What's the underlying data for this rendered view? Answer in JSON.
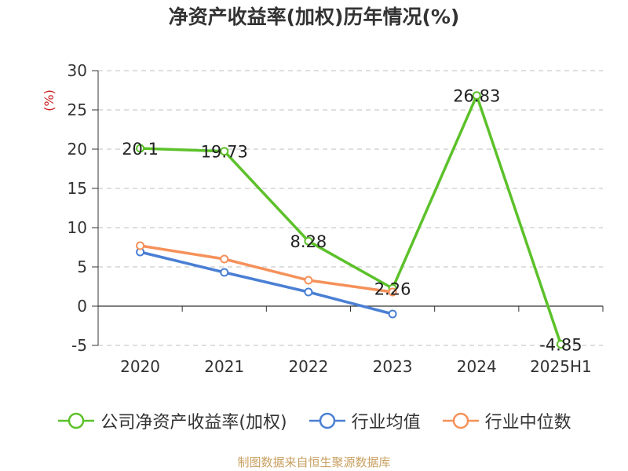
{
  "chart_data": {
    "type": "line",
    "title": "净资产收益率(加权)历年情况(%)",
    "ylabel": "(%)",
    "categories": [
      "2020",
      "2021",
      "2022",
      "2023",
      "2024",
      "2025H1"
    ],
    "ylim": [
      -5,
      30
    ],
    "yticks": [
      30,
      25,
      20,
      15,
      10,
      5,
      0,
      -5
    ],
    "ytick_labels": [
      "30",
      "25",
      "20",
      "15",
      "10",
      "5",
      "0",
      "-5"
    ],
    "grid": true,
    "legend_position": "bottom",
    "series": [
      {
        "name": "公司净资产收益率(加权)",
        "color": "#5cc12a",
        "values": [
          20.1,
          19.73,
          8.28,
          2.26,
          26.83,
          -4.85
        ],
        "data_labels": [
          "20.1",
          "19.73",
          "8.28",
          "2.26",
          "26.83",
          "-4.85"
        ]
      },
      {
        "name": "行业均值",
        "color": "#4a7fd4",
        "values": [
          6.9,
          4.3,
          1.8,
          -1.0,
          null,
          null
        ]
      },
      {
        "name": "行业中位数",
        "color": "#f5915a",
        "values": [
          7.7,
          6.0,
          3.3,
          1.8,
          null,
          null
        ]
      }
    ]
  },
  "footer": {
    "source": "制图数据来自恒生聚源数据库"
  }
}
